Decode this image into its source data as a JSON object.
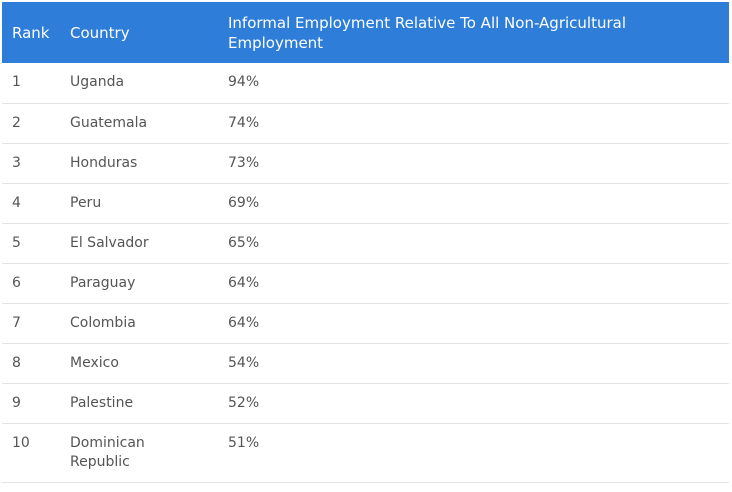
{
  "table": {
    "headers": {
      "rank": "Rank",
      "country": "Country",
      "value": "Informal Employment Relative To All Non-Agricultural Employment"
    },
    "rows": [
      {
        "rank": "1",
        "country": "Uganda",
        "value": "94%"
      },
      {
        "rank": "2",
        "country": "Guatemala",
        "value": "74%"
      },
      {
        "rank": "3",
        "country": "Honduras",
        "value": "73%"
      },
      {
        "rank": "4",
        "country": "Peru",
        "value": "69%"
      },
      {
        "rank": "5",
        "country": "El Salvador",
        "value": "65%"
      },
      {
        "rank": "6",
        "country": "Paraguay",
        "value": "64%"
      },
      {
        "rank": "7",
        "country": "Colombia",
        "value": "64%"
      },
      {
        "rank": "8",
        "country": "Mexico",
        "value": "54%"
      },
      {
        "rank": "9",
        "country": "Palestine",
        "value": "52%"
      },
      {
        "rank": "10",
        "country": "Dominican Republic",
        "value": "51%"
      }
    ]
  },
  "colors": {
    "header_background": "#2d7dd9",
    "header_text": "#ffffff",
    "body_text": "#555555",
    "row_divider": "#e3e3e3"
  }
}
